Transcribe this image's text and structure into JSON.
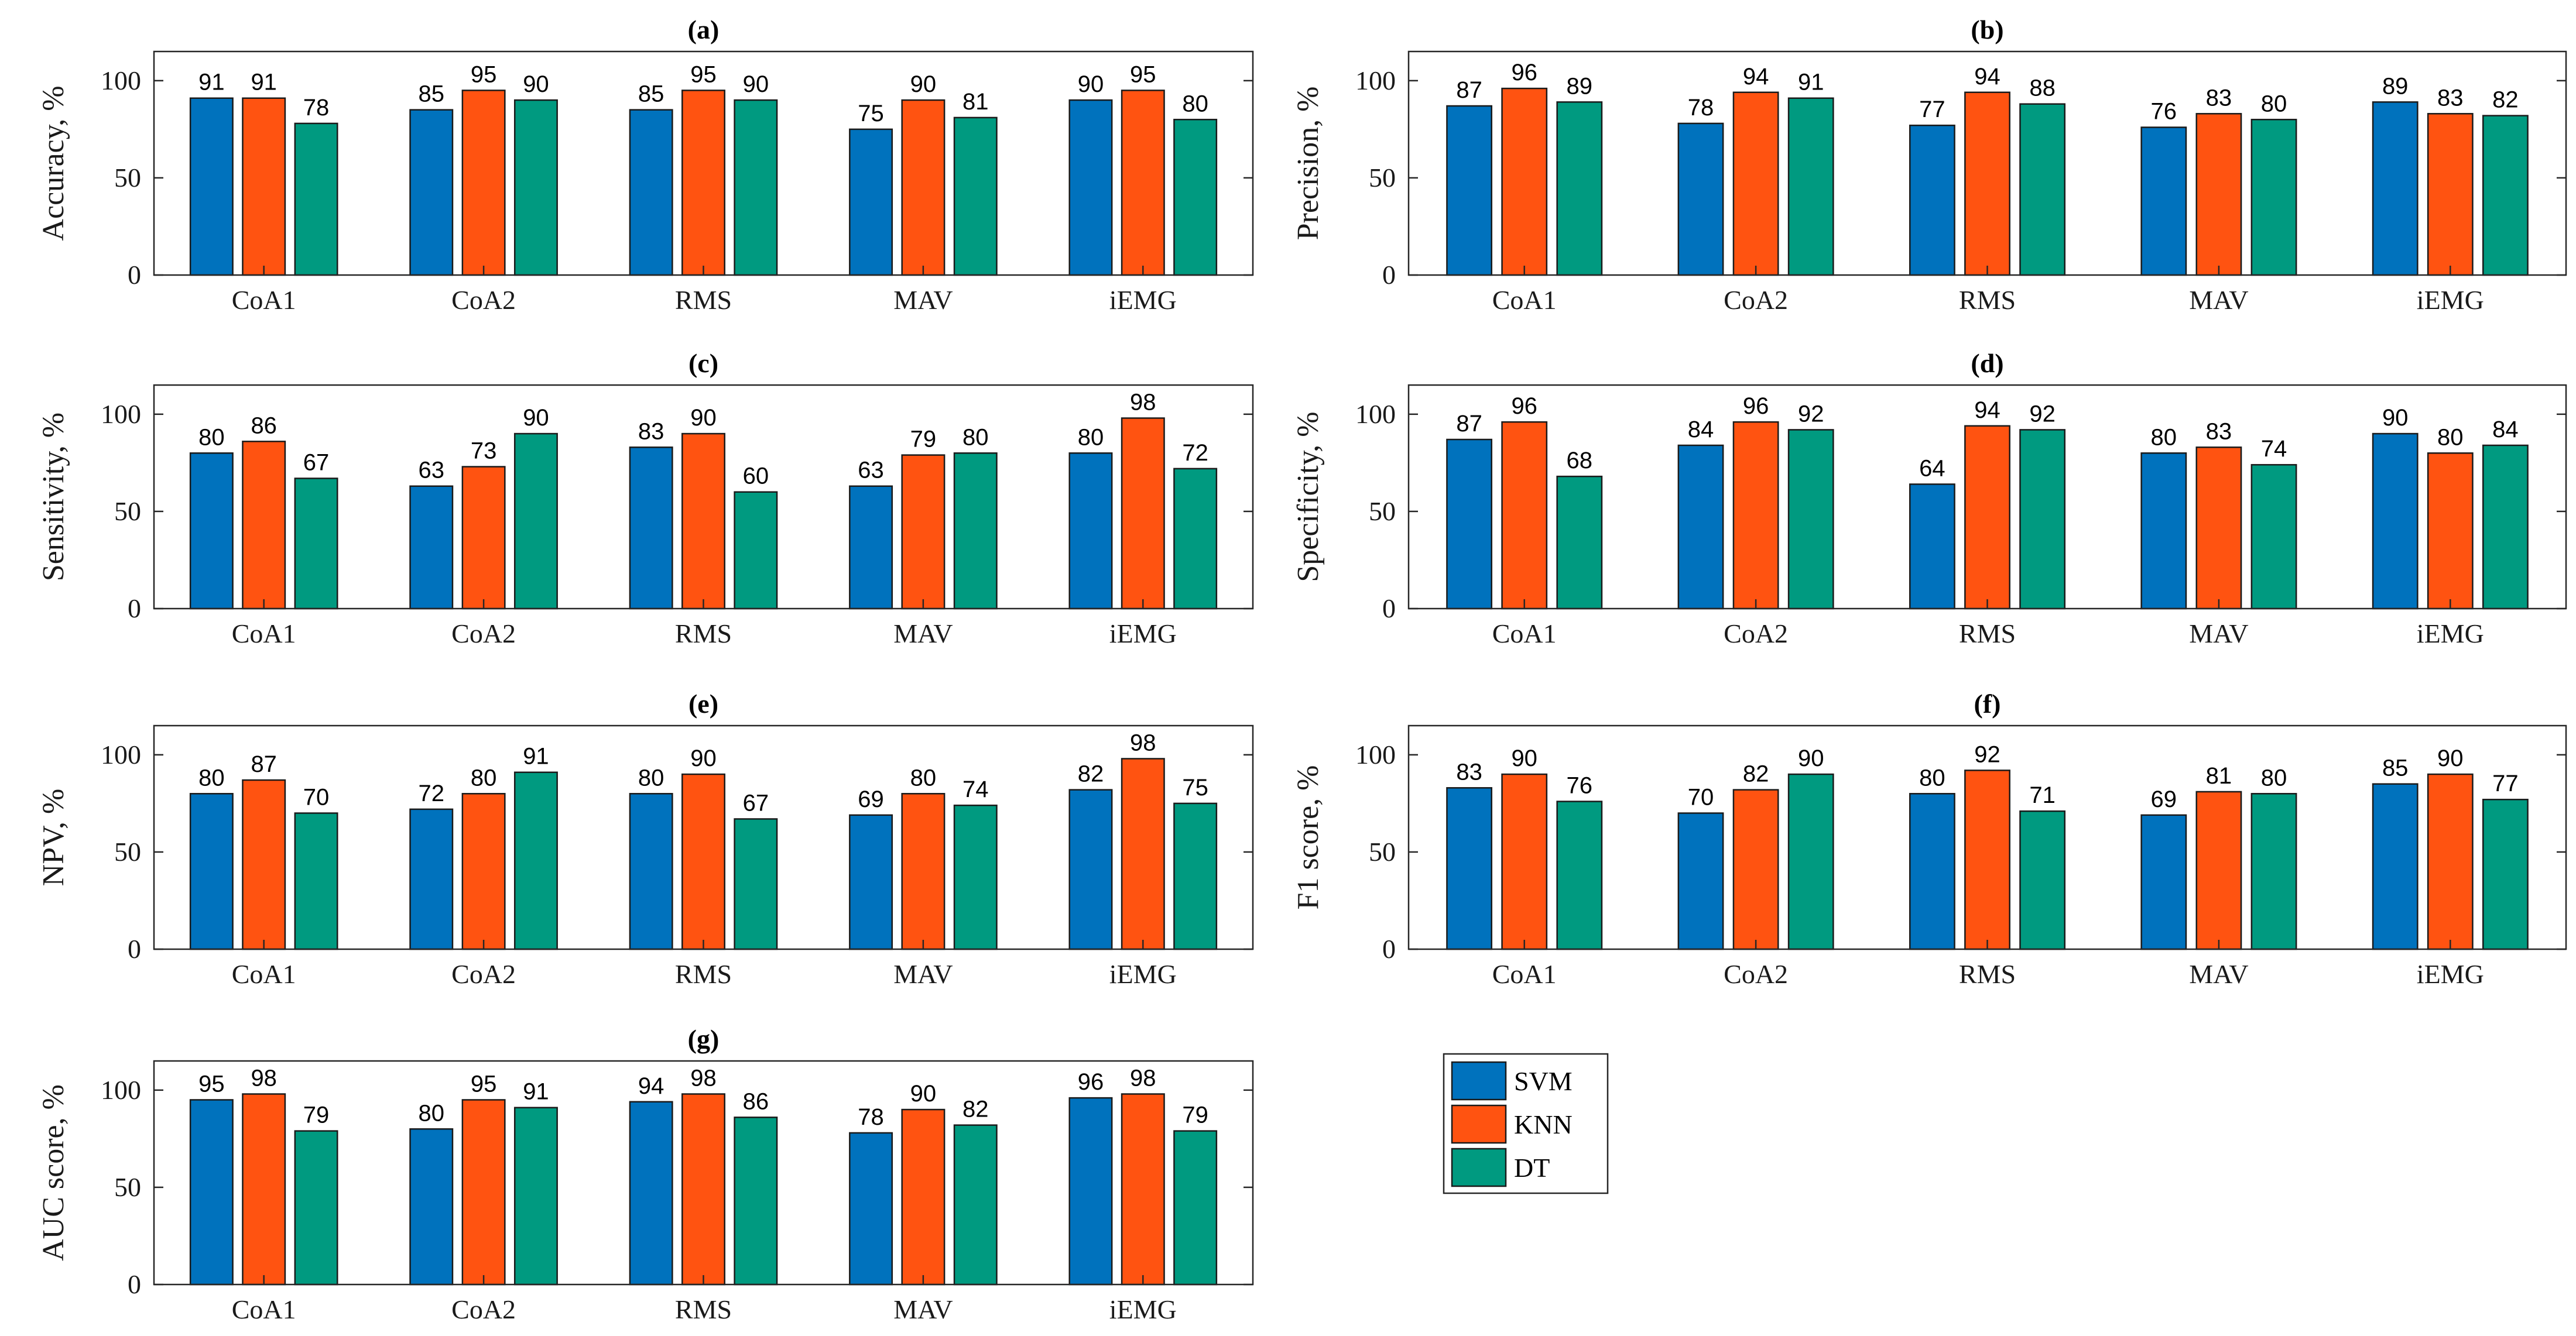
{
  "chart_data": [
    {
      "id": "a",
      "title": "(a)",
      "type": "bar",
      "ylabel": "Accuracy, %",
      "ylim": [
        0,
        115
      ],
      "yticks": [
        0,
        50,
        100
      ],
      "categories": [
        "CoA1",
        "CoA2",
        "RMS",
        "MAV",
        "iEMG"
      ],
      "series": [
        {
          "name": "SVM",
          "values": [
            91,
            85,
            85,
            75,
            90
          ]
        },
        {
          "name": "KNN",
          "values": [
            91,
            95,
            95,
            90,
            95
          ]
        },
        {
          "name": "DT",
          "values": [
            78,
            90,
            90,
            81,
            80
          ]
        }
      ]
    },
    {
      "id": "b",
      "title": "(b)",
      "type": "bar",
      "ylabel": "Precision, %",
      "ylim": [
        0,
        115
      ],
      "yticks": [
        0,
        50,
        100
      ],
      "categories": [
        "CoA1",
        "CoA2",
        "RMS",
        "MAV",
        "iEMG"
      ],
      "series": [
        {
          "name": "SVM",
          "values": [
            87,
            78,
            77,
            76,
            89
          ]
        },
        {
          "name": "KNN",
          "values": [
            96,
            94,
            94,
            83,
            83
          ]
        },
        {
          "name": "DT",
          "values": [
            89,
            91,
            88,
            80,
            82
          ]
        }
      ]
    },
    {
      "id": "c",
      "title": "(c)",
      "type": "bar",
      "ylabel": "Sensitivity, %",
      "ylim": [
        0,
        115
      ],
      "yticks": [
        0,
        50,
        100
      ],
      "categories": [
        "CoA1",
        "CoA2",
        "RMS",
        "MAV",
        "iEMG"
      ],
      "series": [
        {
          "name": "SVM",
          "values": [
            80,
            63,
            83,
            63,
            80
          ]
        },
        {
          "name": "KNN",
          "values": [
            86,
            73,
            90,
            79,
            98
          ]
        },
        {
          "name": "DT",
          "values": [
            67,
            90,
            60,
            80,
            72
          ]
        }
      ]
    },
    {
      "id": "d",
      "title": "(d)",
      "type": "bar",
      "ylabel": "Specificity, %",
      "ylim": [
        0,
        115
      ],
      "yticks": [
        0,
        50,
        100
      ],
      "categories": [
        "CoA1",
        "CoA2",
        "RMS",
        "MAV",
        "iEMG"
      ],
      "series": [
        {
          "name": "SVM",
          "values": [
            87,
            84,
            64,
            80,
            90
          ]
        },
        {
          "name": "KNN",
          "values": [
            96,
            96,
            94,
            83,
            80
          ]
        },
        {
          "name": "DT",
          "values": [
            68,
            92,
            92,
            74,
            84
          ]
        }
      ]
    },
    {
      "id": "e",
      "title": "(e)",
      "type": "bar",
      "ylabel": "NPV, %",
      "ylim": [
        0,
        115
      ],
      "yticks": [
        0,
        50,
        100
      ],
      "categories": [
        "CoA1",
        "CoA2",
        "RMS",
        "MAV",
        "iEMG"
      ],
      "series": [
        {
          "name": "SVM",
          "values": [
            80,
            72,
            80,
            69,
            82
          ]
        },
        {
          "name": "KNN",
          "values": [
            87,
            80,
            90,
            80,
            98
          ]
        },
        {
          "name": "DT",
          "values": [
            70,
            91,
            67,
            74,
            75
          ]
        }
      ]
    },
    {
      "id": "f",
      "title": "(f)",
      "type": "bar",
      "ylabel": "F1 score, %",
      "ylim": [
        0,
        115
      ],
      "yticks": [
        0,
        50,
        100
      ],
      "categories": [
        "CoA1",
        "CoA2",
        "RMS",
        "MAV",
        "iEMG"
      ],
      "series": [
        {
          "name": "SVM",
          "values": [
            83,
            70,
            80,
            69,
            85
          ]
        },
        {
          "name": "KNN",
          "values": [
            90,
            82,
            92,
            81,
            90
          ]
        },
        {
          "name": "DT",
          "values": [
            76,
            90,
            71,
            80,
            77
          ]
        }
      ]
    },
    {
      "id": "g",
      "title": "(g)",
      "type": "bar",
      "ylabel": "AUC score, %",
      "ylim": [
        0,
        115
      ],
      "yticks": [
        0,
        50,
        100
      ],
      "categories": [
        "CoA1",
        "CoA2",
        "RMS",
        "MAV",
        "iEMG"
      ],
      "series": [
        {
          "name": "SVM",
          "values": [
            95,
            80,
            94,
            78,
            96
          ]
        },
        {
          "name": "KNN",
          "values": [
            98,
            95,
            98,
            90,
            98
          ]
        },
        {
          "name": "DT",
          "values": [
            79,
            91,
            86,
            82,
            79
          ]
        }
      ]
    }
  ],
  "legend": [
    {
      "name": "SVM",
      "color": "#0072BD"
    },
    {
      "name": "KNN",
      "color": "#FF5311"
    },
    {
      "name": "DT",
      "color": "#009A80"
    }
  ]
}
